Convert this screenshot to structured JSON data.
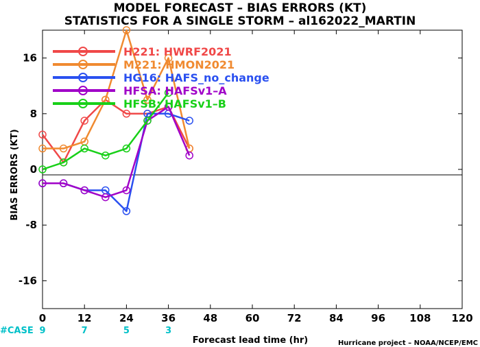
{
  "chart_data": {
    "type": "line",
    "title": "MODEL FORECAST – BIAS ERRORS (KT)",
    "subtitle": "STATISTICS FOR A SINGLE STORM – al162022_MARTIN",
    "xlabel": "Forecast lead time (hr)",
    "ylabel": "BIAS ERRORS (KT)",
    "credit": "Hurricane project – NOAA/NCEP/EMC",
    "xlim": [
      0,
      120
    ],
    "ylim": [
      -20,
      20
    ],
    "xticks": [
      "0",
      "12",
      "24",
      "36",
      "48",
      "60",
      "72",
      "84",
      "96",
      "108",
      "120"
    ],
    "yticks": [
      "16",
      "8",
      "0",
      "-8",
      "-16"
    ],
    "case_label": "#CASE",
    "cases": [
      {
        "x": 0,
        "n": "9"
      },
      {
        "x": 12,
        "n": "7"
      },
      {
        "x": 24,
        "n": "5"
      },
      {
        "x": 36,
        "n": "3"
      }
    ],
    "legend_placement": "top-left",
    "series": [
      {
        "name": "H221: HWRF2021",
        "color": "#f04848",
        "x": [
          0,
          6,
          12,
          18,
          24,
          30,
          36,
          42
        ],
        "y": [
          5,
          1,
          7,
          10,
          8,
          8,
          9,
          3
        ]
      },
      {
        "name": "M221: HMON2021",
        "color": "#f08a30",
        "x": [
          0,
          6,
          12,
          18,
          24,
          30,
          36,
          42
        ],
        "y": [
          3,
          3,
          4,
          10,
          20,
          10,
          16,
          3
        ]
      },
      {
        "name": "HG16: HAFS_no_change",
        "color": "#2a50f0",
        "x": [
          0,
          6,
          12,
          18,
          24,
          30,
          36,
          42
        ],
        "y": [
          -2,
          -2,
          -3,
          -3,
          -6,
          8,
          8,
          7
        ]
      },
      {
        "name": "HFSA: HAFSv1–A",
        "color": "#a000c8",
        "x": [
          0,
          6,
          12,
          18,
          24,
          30,
          36,
          42
        ],
        "y": [
          -2,
          -2,
          -3,
          -4,
          -3,
          7,
          9,
          2
        ]
      },
      {
        "name": "HFSB: HAFSv1–B",
        "color": "#18d018",
        "x": [
          0,
          6,
          12,
          18,
          24,
          30,
          36
        ],
        "y": [
          0,
          1,
          3,
          2,
          3,
          7,
          11
        ]
      }
    ]
  }
}
